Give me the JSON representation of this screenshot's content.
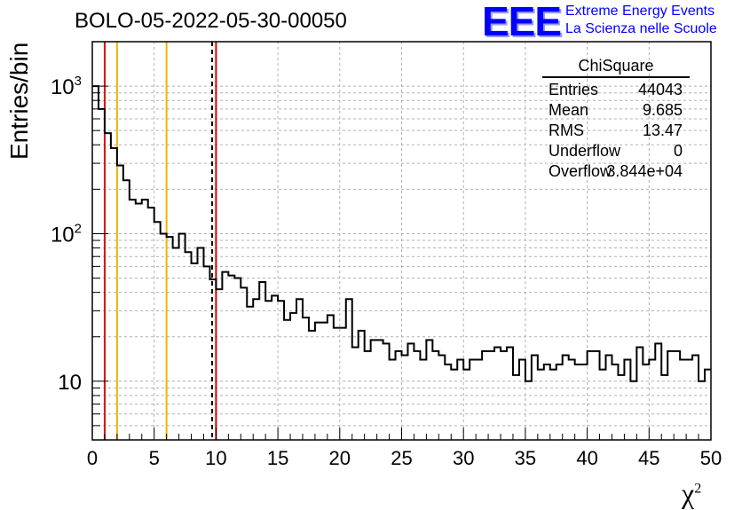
{
  "title": "BOLO-05-2022-05-30-00050",
  "logo": {
    "mark": "EEE",
    "line1": "Extreme Energy Events",
    "line2": "La Scienza nelle Scuole",
    "color": "#0000ff"
  },
  "stats": {
    "title": "ChiSquare",
    "rows": [
      {
        "key": "Entries",
        "value": "44043"
      },
      {
        "key": "Mean",
        "value": "9.685"
      },
      {
        "key": "RMS",
        "value": "13.47"
      },
      {
        "key": "Underflow",
        "value": "0"
      },
      {
        "key": "Overflow",
        "value": "3.844e+04"
      }
    ]
  },
  "chart_data": {
    "type": "histogram",
    "xlabel": "χ",
    "xlabel_sup": "2",
    "ylabel": "Entries/bin",
    "xlim": [
      0,
      50
    ],
    "ylim": [
      4,
      2000
    ],
    "y_scale": "log",
    "grid": true,
    "x_ticks": [
      0,
      5,
      10,
      15,
      20,
      25,
      30,
      35,
      40,
      45,
      50
    ],
    "y_tick_labels": [
      {
        "value": 10,
        "base": "10",
        "exp": ""
      },
      {
        "value": 100,
        "base": "10",
        "exp": "2"
      },
      {
        "value": 1000,
        "base": "10",
        "exp": "3"
      }
    ],
    "bin_width": 0.5,
    "x_start": 0,
    "values": [
      1000,
      700,
      480,
      380,
      290,
      230,
      170,
      160,
      170,
      150,
      120,
      100,
      95,
      80,
      100,
      75,
      63,
      80,
      60,
      49,
      42,
      55,
      52,
      50,
      43,
      32,
      36,
      47,
      35,
      38,
      35,
      26,
      29,
      36,
      27,
      22,
      25,
      25,
      28,
      23,
      23,
      36,
      17,
      22,
      16,
      19,
      19,
      18,
      14,
      16,
      15,
      18,
      16,
      14,
      19,
      16,
      15,
      13,
      12,
      14,
      12,
      14,
      14,
      16,
      16,
      17,
      16,
      17,
      11,
      14,
      10,
      15,
      12,
      13,
      12,
      13,
      15,
      14,
      13,
      13,
      16,
      16,
      12,
      15,
      13,
      11,
      14,
      10,
      17,
      13,
      14,
      18,
      11,
      16,
      16,
      14,
      14,
      15,
      10,
      12
    ],
    "vertical_lines": [
      {
        "x": 1,
        "color": "#dd0000",
        "style": "solid"
      },
      {
        "x": 2,
        "color": "#f0b400",
        "style": "solid"
      },
      {
        "x": 6,
        "color": "#f0b400",
        "style": "solid"
      },
      {
        "x": 9.685,
        "color": "#000000",
        "style": "dashed"
      },
      {
        "x": 10,
        "color": "#dd0000",
        "style": "solid"
      }
    ]
  }
}
